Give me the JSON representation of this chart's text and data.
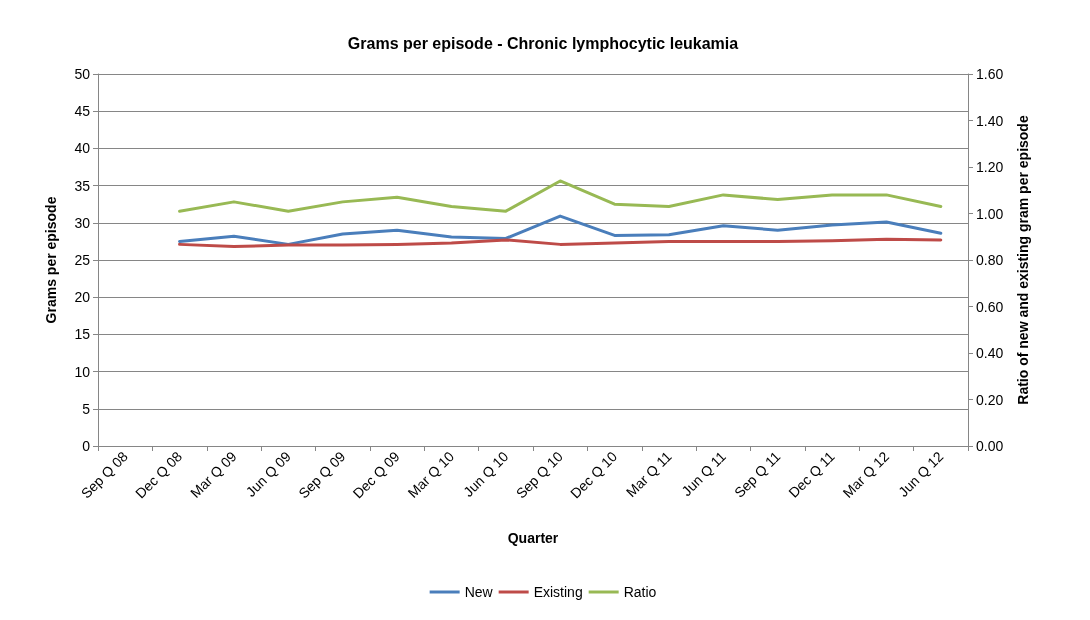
{
  "chart_data": {
    "type": "line",
    "title": "Grams per episode - Chronic lymphocytic leukamia",
    "xlabel": "Quarter",
    "ylabel": "Grams per episode",
    "y2label": "Ratio of new and existing gram per episode",
    "categories": [
      "Sep Q 08",
      "Dec Q 08",
      "Mar Q 09",
      "Jun Q 09",
      "Sep Q 09",
      "Dec Q 09",
      "Mar Q 10",
      "Jun Q 10",
      "Sep Q 10",
      "Dec Q 10",
      "Mar Q 11",
      "Jun Q 11",
      "Sep Q 11",
      "Dec Q 11",
      "Mar Q 12",
      "Jun Q 12"
    ],
    "series": [
      {
        "name": "New",
        "color": "#4a7ebb",
        "values": [
          null,
          27.5,
          28.2,
          27.1,
          28.5,
          29.0,
          28.1,
          27.9,
          30.9,
          28.3,
          28.4,
          29.6,
          29.0,
          29.7,
          30.1,
          28.6
        ]
      },
      {
        "name": "Existing",
        "color": "#be4b48",
        "values": [
          null,
          27.1,
          26.8,
          27.0,
          27.0,
          27.1,
          27.3,
          27.7,
          27.1,
          27.3,
          27.5,
          27.5,
          27.5,
          27.6,
          27.8,
          27.7
        ]
      },
      {
        "name": "Ratio",
        "color": "#98b954",
        "axis": "y2",
        "values": [
          null,
          1.01,
          1.05,
          1.01,
          1.05,
          1.07,
          1.03,
          1.01,
          1.14,
          1.04,
          1.03,
          1.08,
          1.06,
          1.08,
          1.08,
          1.03
        ]
      }
    ],
    "ylim": [
      0,
      50
    ],
    "yticks": [
      0,
      5,
      10,
      15,
      20,
      25,
      30,
      35,
      40,
      45,
      50
    ],
    "y2lim": [
      0,
      1.6
    ],
    "y2ticks": [
      {
        "value": 0,
        "label": "0.00"
      },
      {
        "value": 0.2,
        "label": "0.20"
      },
      {
        "value": 0.4,
        "label": "0.40"
      },
      {
        "value": 0.6,
        "label": "0.60"
      },
      {
        "value": 0.8,
        "label": "0.80"
      },
      {
        "value": 1,
        "label": "1.00"
      },
      {
        "value": 1.2,
        "label": "1.20"
      },
      {
        "value": 1.4,
        "label": "1.40"
      },
      {
        "value": 1.6,
        "label": "1.60"
      }
    ],
    "grid": "y",
    "legend": "bottom",
    "marker": "none",
    "line_style": "solid"
  }
}
